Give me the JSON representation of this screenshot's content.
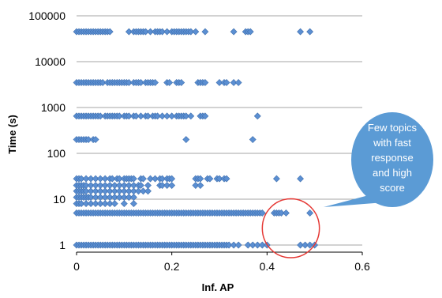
{
  "chart_data": {
    "type": "scatter",
    "title": "",
    "xlabel": "Inf. AP",
    "ylabel": "Time (s)",
    "xlim": [
      0,
      0.6
    ],
    "ylim": [
      0.7,
      100000
    ],
    "y_scale": "log",
    "x_ticks": [
      "0",
      "0.2",
      "0.4",
      "0.6"
    ],
    "y_ticks": [
      "1",
      "10",
      "100",
      "1000",
      "10000",
      "100000"
    ],
    "grid": "horizontal",
    "legend": "none",
    "marker": "diamond",
    "marker_color": "#5b8fd2",
    "bands": [
      {
        "y": 45000,
        "x": [
          0.0,
          0.005,
          0.01,
          0.015,
          0.02,
          0.025,
          0.03,
          0.035,
          0.04,
          0.045,
          0.05,
          0.055,
          0.06,
          0.065,
          0.07,
          0.11,
          0.12,
          0.125,
          0.13,
          0.135,
          0.14,
          0.145,
          0.155,
          0.165,
          0.17,
          0.175,
          0.18,
          0.19,
          0.2,
          0.205,
          0.21,
          0.215,
          0.22,
          0.225,
          0.23,
          0.235,
          0.24,
          0.25,
          0.27,
          0.33,
          0.355,
          0.36,
          0.365,
          0.47,
          0.49
        ]
      },
      {
        "y": 3500,
        "x": [
          0.0,
          0.005,
          0.01,
          0.015,
          0.02,
          0.025,
          0.03,
          0.035,
          0.04,
          0.045,
          0.05,
          0.055,
          0.065,
          0.07,
          0.075,
          0.08,
          0.085,
          0.09,
          0.095,
          0.1,
          0.105,
          0.11,
          0.12,
          0.125,
          0.13,
          0.135,
          0.145,
          0.15,
          0.155,
          0.16,
          0.165,
          0.19,
          0.195,
          0.21,
          0.215,
          0.22,
          0.255,
          0.26,
          0.265,
          0.27,
          0.3,
          0.31,
          0.315,
          0.33,
          0.34
        ]
      },
      {
        "y": 650,
        "x": [
          0.0,
          0.005,
          0.01,
          0.015,
          0.02,
          0.025,
          0.03,
          0.035,
          0.04,
          0.045,
          0.05,
          0.06,
          0.065,
          0.07,
          0.075,
          0.08,
          0.085,
          0.09,
          0.1,
          0.105,
          0.11,
          0.12,
          0.125,
          0.135,
          0.145,
          0.15,
          0.16,
          0.165,
          0.17,
          0.18,
          0.19,
          0.2,
          0.21,
          0.215,
          0.22,
          0.225,
          0.23,
          0.24,
          0.26,
          0.265,
          0.27,
          0.38
        ]
      },
      {
        "y": 200,
        "x": [
          0.0,
          0.005,
          0.01,
          0.015,
          0.02,
          0.025,
          0.035,
          0.04,
          0.23,
          0.37
        ]
      },
      {
        "y": 28,
        "x": [
          0.0,
          0.005,
          0.01,
          0.02,
          0.03,
          0.04,
          0.05,
          0.06,
          0.07,
          0.075,
          0.085,
          0.09,
          0.1,
          0.105,
          0.11,
          0.115,
          0.12,
          0.135,
          0.14,
          0.155,
          0.165,
          0.175,
          0.18,
          0.19,
          0.195,
          0.2,
          0.25,
          0.255,
          0.26,
          0.275,
          0.28,
          0.295,
          0.3,
          0.31,
          0.315,
          0.42,
          0.47
        ]
      },
      {
        "y": 20,
        "x": [
          0.0,
          0.005,
          0.01,
          0.015,
          0.02,
          0.03,
          0.04,
          0.05,
          0.06,
          0.07,
          0.08,
          0.09,
          0.1,
          0.11,
          0.12,
          0.13,
          0.135,
          0.15,
          0.175,
          0.18,
          0.19,
          0.2,
          0.25,
          0.26
        ]
      },
      {
        "y": 15,
        "x": [
          0.0,
          0.005,
          0.01,
          0.015,
          0.02,
          0.03,
          0.04,
          0.05,
          0.06,
          0.07,
          0.08,
          0.09,
          0.1,
          0.11,
          0.12,
          0.13,
          0.14,
          0.15
        ]
      },
      {
        "y": 11,
        "x": [
          0.0,
          0.005,
          0.01,
          0.015,
          0.02,
          0.025,
          0.03,
          0.04,
          0.05,
          0.06,
          0.07,
          0.08,
          0.09,
          0.1,
          0.11,
          0.12
        ]
      },
      {
        "y": 8,
        "x": [
          0.0,
          0.005,
          0.01,
          0.02,
          0.03,
          0.04,
          0.05,
          0.06,
          0.07,
          0.08,
          0.1,
          0.12
        ]
      },
      {
        "y": 5,
        "x": [
          0.0,
          0.005,
          0.01,
          0.015,
          0.02,
          0.025,
          0.03,
          0.035,
          0.04,
          0.045,
          0.05,
          0.055,
          0.06,
          0.065,
          0.07,
          0.075,
          0.08,
          0.085,
          0.09,
          0.095,
          0.1,
          0.105,
          0.11,
          0.115,
          0.12,
          0.125,
          0.13,
          0.135,
          0.14,
          0.145,
          0.15,
          0.155,
          0.16,
          0.165,
          0.17,
          0.175,
          0.18,
          0.185,
          0.19,
          0.195,
          0.2,
          0.205,
          0.21,
          0.215,
          0.22,
          0.225,
          0.23,
          0.235,
          0.24,
          0.245,
          0.25,
          0.255,
          0.26,
          0.265,
          0.27,
          0.275,
          0.28,
          0.285,
          0.29,
          0.295,
          0.3,
          0.305,
          0.31,
          0.315,
          0.32,
          0.325,
          0.33,
          0.335,
          0.34,
          0.345,
          0.35,
          0.355,
          0.36,
          0.365,
          0.37,
          0.375,
          0.38,
          0.385,
          0.39,
          0.415,
          0.42,
          0.425,
          0.43,
          0.44,
          0.49
        ]
      },
      {
        "y": 1,
        "x": [
          0.0,
          0.005,
          0.01,
          0.015,
          0.02,
          0.025,
          0.03,
          0.035,
          0.04,
          0.045,
          0.05,
          0.055,
          0.06,
          0.065,
          0.07,
          0.075,
          0.08,
          0.085,
          0.09,
          0.095,
          0.1,
          0.105,
          0.11,
          0.115,
          0.12,
          0.125,
          0.13,
          0.135,
          0.14,
          0.145,
          0.15,
          0.155,
          0.16,
          0.165,
          0.17,
          0.175,
          0.18,
          0.185,
          0.19,
          0.195,
          0.2,
          0.205,
          0.21,
          0.215,
          0.22,
          0.225,
          0.23,
          0.235,
          0.24,
          0.245,
          0.25,
          0.255,
          0.26,
          0.265,
          0.27,
          0.275,
          0.28,
          0.285,
          0.29,
          0.295,
          0.3,
          0.305,
          0.31,
          0.315,
          0.32,
          0.33,
          0.34,
          0.36,
          0.37,
          0.38,
          0.39,
          0.4,
          0.47,
          0.48,
          0.49,
          0.5
        ]
      }
    ],
    "annotations": [
      {
        "type": "callout",
        "text": [
          "Few topics",
          "with fast",
          "response",
          "and high",
          "score"
        ],
        "fill": "#5b9bd5"
      },
      {
        "type": "circle",
        "stroke": "#e53935",
        "target": {
          "x": [
            0.4,
            0.5
          ],
          "y": [
            1,
            5
          ]
        }
      }
    ]
  }
}
